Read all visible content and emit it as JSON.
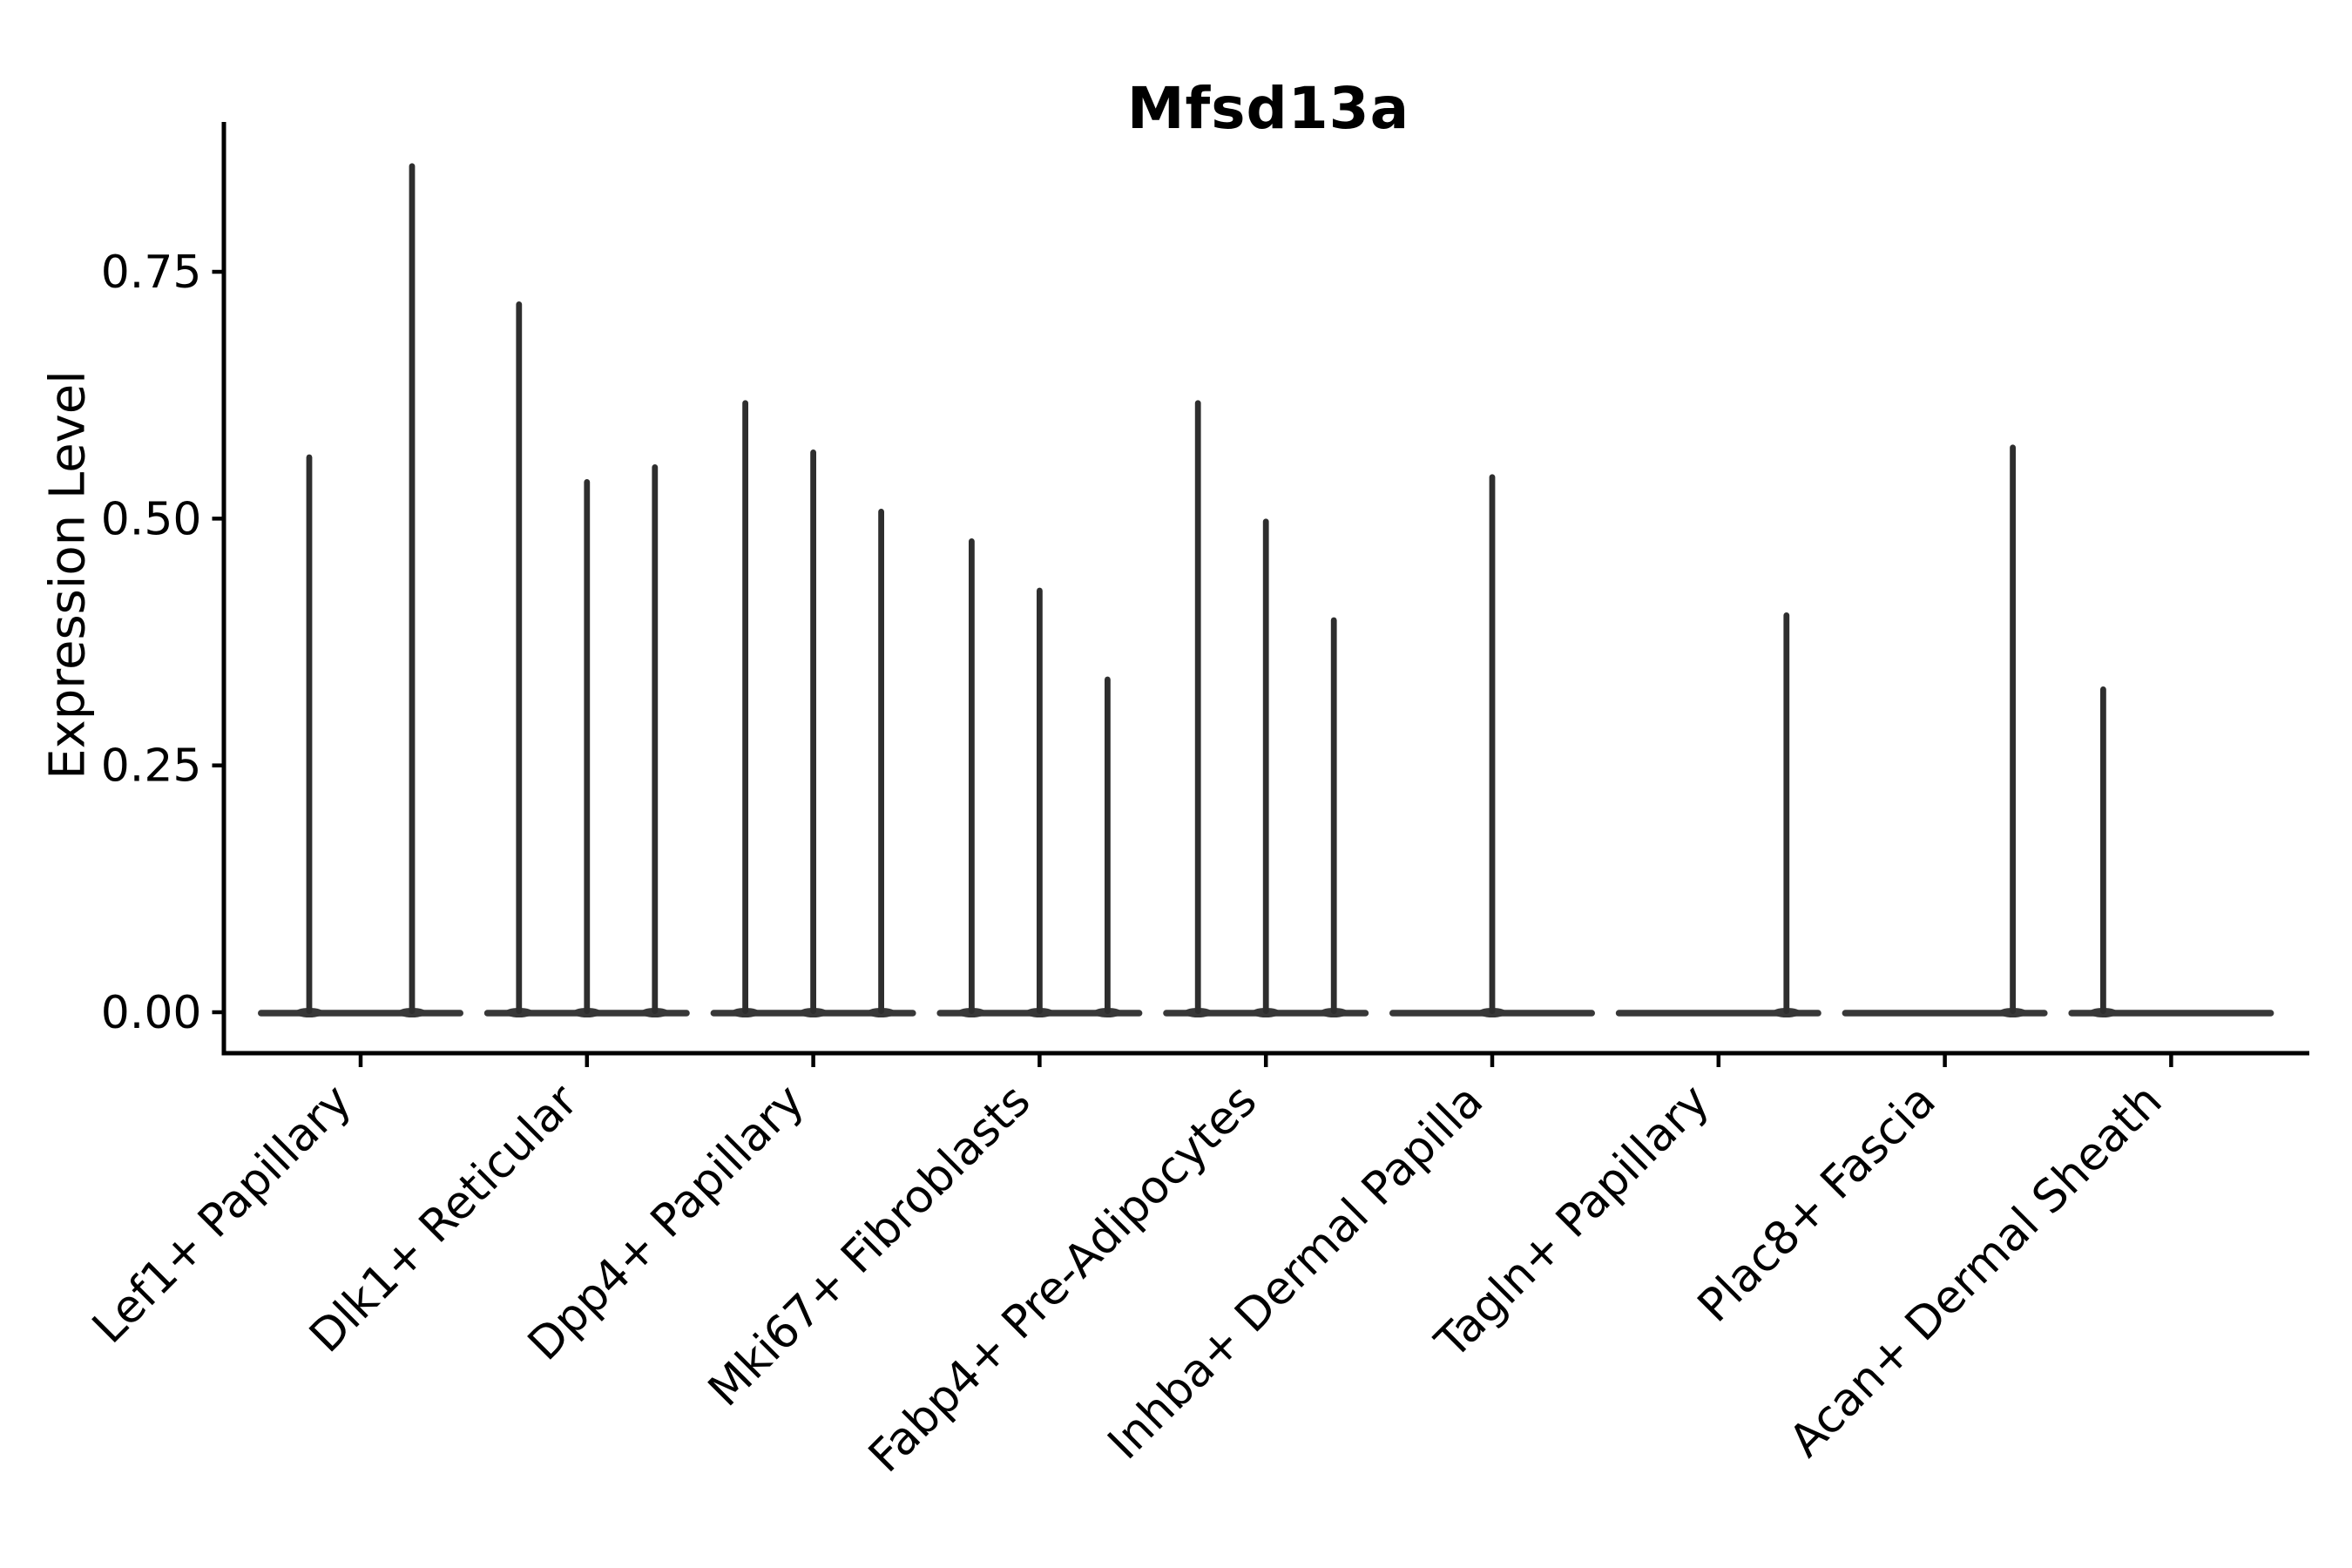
{
  "figure": {
    "title": "Mfsd13a",
    "y_axis_label": "Expression Level"
  },
  "chart_data": {
    "type": "violin",
    "title": "Mfsd13a",
    "xlabel": "",
    "ylabel": "Expression Level",
    "ylim": [
      -0.04,
      0.9
    ],
    "y_ticks": [
      0,
      0.25,
      0.5,
      0.75
    ],
    "y_tick_labels": [
      "0.00",
      "0.25",
      "0.50",
      "0.75"
    ],
    "grid": false,
    "legend_position": "none",
    "baseline_value": 0,
    "categories": [
      "Lef1+ Papillary",
      "Dlk1+ Reticular",
      "Dpp4+ Papillary",
      "Mki67+ Fibroblasts",
      "Fabp4+ Pre-Adipocytes",
      "Inhba+ Dermal Papilla",
      "Tagln+ Papillary",
      "Plac8+ Fascia",
      "Acan+ Dermal Sheath"
    ],
    "groups": [
      {
        "label": "Lef1+ Papillary",
        "slots": 2,
        "violins": [
          {
            "slot": 0,
            "max": 0.565
          },
          {
            "slot": 1,
            "max": 0.86
          }
        ]
      },
      {
        "label": "Dlk1+ Reticular",
        "slots": 3,
        "violins": [
          {
            "slot": 0,
            "max": 0.72
          },
          {
            "slot": 1,
            "max": 0.54
          },
          {
            "slot": 2,
            "max": 0.555
          }
        ]
      },
      {
        "label": "Dpp4+ Papillary",
        "slots": 3,
        "violins": [
          {
            "slot": 0,
            "max": 0.62
          },
          {
            "slot": 1,
            "max": 0.57
          },
          {
            "slot": 2,
            "max": 0.51
          }
        ]
      },
      {
        "label": "Mki67+ Fibroblasts",
        "slots": 3,
        "violins": [
          {
            "slot": 0,
            "max": 0.48
          },
          {
            "slot": 1,
            "max": 0.43
          },
          {
            "slot": 2,
            "max": 0.34
          }
        ]
      },
      {
        "label": "Fabp4+ Pre-Adipocytes",
        "slots": 3,
        "violins": [
          {
            "slot": 0,
            "max": 0.62
          },
          {
            "slot": 1,
            "max": 0.5
          },
          {
            "slot": 2,
            "max": 0.4
          }
        ]
      },
      {
        "label": "Inhba+ Dermal Papilla",
        "slots": 3,
        "violins": [
          {
            "slot": 1,
            "max": 0.545
          }
        ]
      },
      {
        "label": "Tagln+ Papillary",
        "slots": 3,
        "violins": [
          {
            "slot": 2,
            "max": 0.405
          }
        ]
      },
      {
        "label": "Plac8+ Fascia",
        "slots": 3,
        "violins": [
          {
            "slot": 2,
            "max": 0.575
          }
        ]
      },
      {
        "label": "Acan+ Dermal Sheath",
        "slots": 3,
        "violins": [
          {
            "slot": 0,
            "max": 0.33
          }
        ]
      }
    ],
    "colors": {
      "violin": "#383838",
      "spike": "#2e2e2e",
      "axis": "#000000",
      "text": "#000000",
      "background": "#ffffff"
    }
  }
}
